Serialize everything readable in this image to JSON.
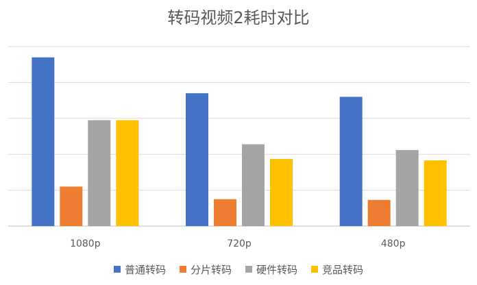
{
  "chart_data": {
    "type": "bar",
    "title": "转码视频2耗时对比",
    "categories": [
      "1080p",
      "720p",
      "480p"
    ],
    "series": [
      {
        "name": "普通转码",
        "color": "#4472C4",
        "values": [
          4.7,
          3.7,
          3.6
        ]
      },
      {
        "name": "分片转码",
        "color": "#ED7D31",
        "values": [
          1.1,
          0.75,
          0.73
        ]
      },
      {
        "name": "硬件转码",
        "color": "#A5A5A5",
        "values": [
          2.95,
          2.28,
          2.12
        ]
      },
      {
        "name": "竞品转码",
        "color": "#FFC000",
        "values": [
          2.95,
          1.87,
          1.83
        ]
      }
    ],
    "ylim": [
      0,
      5
    ],
    "y_tick_labels_shown": false,
    "grid": true,
    "legend_position": "bottom"
  }
}
